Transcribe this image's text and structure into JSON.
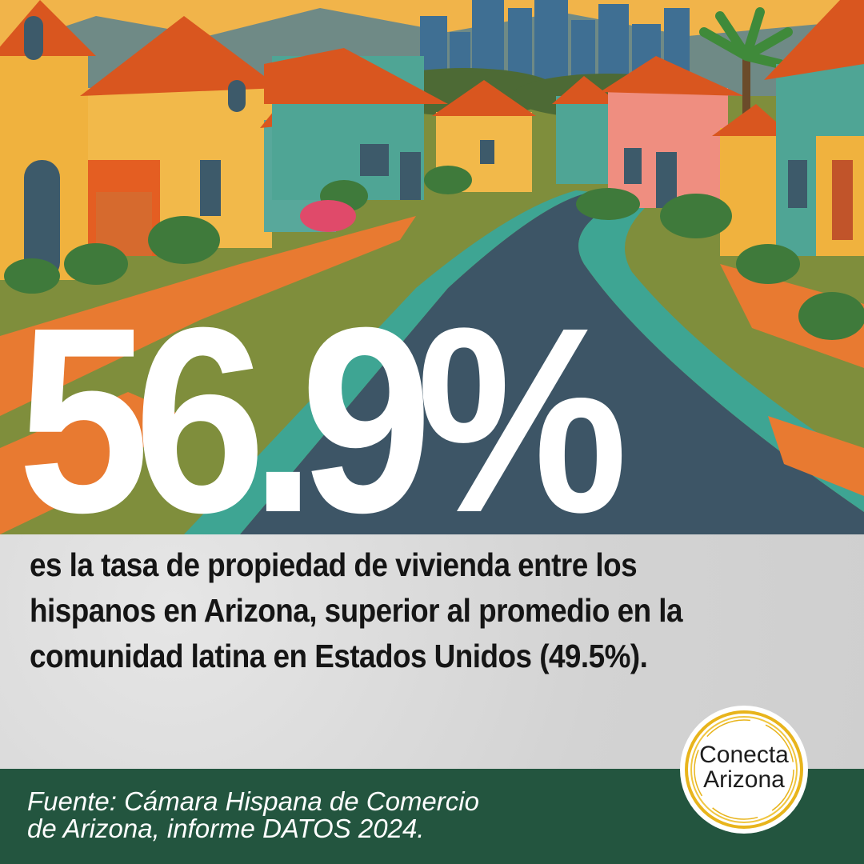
{
  "headline": {
    "value": "56.9%"
  },
  "statement": {
    "text": "es la tasa de propiedad de vivienda entre los hispanos en Arizona, superior al promedio en la comunidad latina en Estados Unidos (49.5%)."
  },
  "footer": {
    "source_line1": "Fuente: Cámara Hispana de Comercio",
    "source_line2": "de Arizona, informe DATOS 2024."
  },
  "logo": {
    "line1": "Conecta",
    "line2": "Arizona"
  },
  "colors": {
    "footer_bg": "#23553f",
    "headline": "#ffffff",
    "text": "#151515",
    "logo_ring": "#e8b41c"
  },
  "illustration": {
    "subject": "colorful suburban street with houses, palm tree and city skyline"
  }
}
